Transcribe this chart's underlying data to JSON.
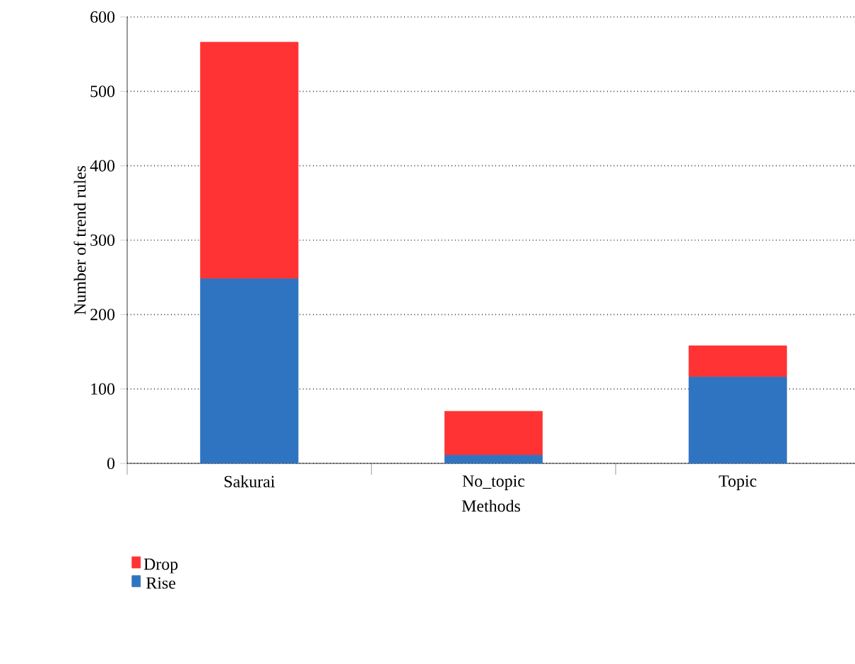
{
  "chart_data": {
    "type": "bar",
    "stacked": true,
    "xlabel": "Methods",
    "ylabel": "Number of trend rules",
    "categories": [
      "Sakurai",
      "No_topic",
      "Topic"
    ],
    "series": [
      {
        "name": "Rise",
        "color": "#2f74c0",
        "values": [
          248,
          11,
          116
        ]
      },
      {
        "name": "Drop",
        "color": "#ff3333",
        "values": [
          318,
          59,
          42
        ]
      }
    ],
    "ylim": [
      0,
      600
    ],
    "yticks": [
      0,
      100,
      200,
      300,
      400,
      500,
      600
    ],
    "grid": "y",
    "legend": "bottom left"
  }
}
